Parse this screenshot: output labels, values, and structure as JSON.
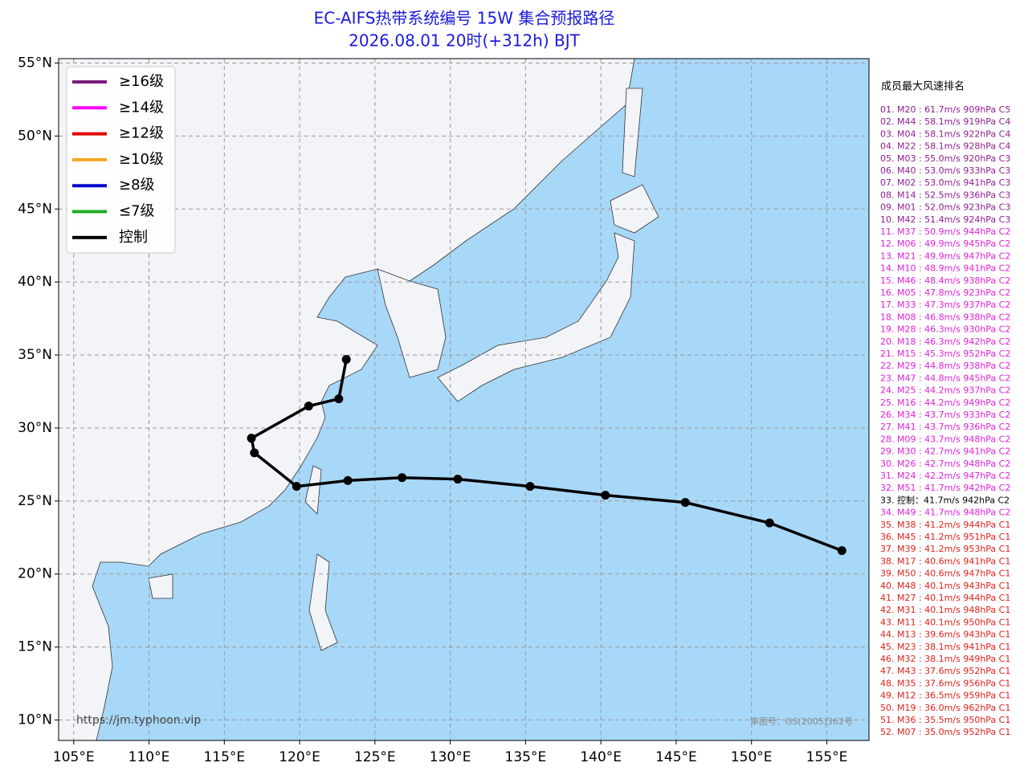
{
  "title": "EC-AIFS热带系统编号 15W 集合预报路径",
  "subtitle": "2026.08.01 20时(+312h) BJT",
  "map": {
    "xlim": [
      104,
      157.8
    ],
    "ylim": [
      8.6,
      55.3
    ],
    "xticks": [
      {
        "value": 105,
        "label": "105°E"
      },
      {
        "value": 110,
        "label": "110°E"
      },
      {
        "value": 115,
        "label": "115°E"
      },
      {
        "value": 120,
        "label": "120°E"
      },
      {
        "value": 125,
        "label": "125°E"
      },
      {
        "value": 130,
        "label": "130°E"
      },
      {
        "value": 135,
        "label": "135°E"
      },
      {
        "value": 140,
        "label": "140°E"
      },
      {
        "value": 145,
        "label": "145°E"
      },
      {
        "value": 150,
        "label": "150°E"
      },
      {
        "value": 155,
        "label": "155°E"
      }
    ],
    "yticks": [
      {
        "value": 10,
        "label": "10°N"
      },
      {
        "value": 15,
        "label": "15°N"
      },
      {
        "value": 20,
        "label": "20°N"
      },
      {
        "value": 25,
        "label": "25°N"
      },
      {
        "value": 30,
        "label": "30°N"
      },
      {
        "value": 35,
        "label": "35°N"
      },
      {
        "value": 40,
        "label": "40°N"
      },
      {
        "value": 45,
        "label": "45°N"
      },
      {
        "value": 50,
        "label": "50°N"
      },
      {
        "value": 55,
        "label": "55°N"
      }
    ],
    "grid": true,
    "legend": [
      {
        "name": "≥16级",
        "color": "#7b1a7b"
      },
      {
        "name": "≥14级",
        "color": "#ff00ff"
      },
      {
        "name": "≥12级",
        "color": "#e00000"
      },
      {
        "name": "≥10级",
        "color": "#f5a623"
      },
      {
        "name": "≥8级",
        "color": "#0000cc"
      },
      {
        "name": "≤7级",
        "color": "#22aa22"
      },
      {
        "name": "控制",
        "color": "#000000"
      }
    ],
    "control_track": {
      "lon": [
        156,
        151.2,
        145.6,
        140.3,
        135.3,
        130.5,
        126.8,
        123.2,
        119.8,
        117,
        116.8,
        120.6,
        122.6,
        123.1
      ],
      "lat": [
        21.6,
        23.5,
        24.9,
        25.4,
        26,
        26.5,
        26.6,
        26.4,
        26,
        28.3,
        29.3,
        31.5,
        32,
        34.7
      ]
    },
    "watermark": "https://jm.typhoon.vip",
    "approval": "审图号：GS(2005)362号"
  },
  "ranking_title": "成员最大风速排名",
  "ranking": [
    {
      "text": "01. M20 : 61.7m/s 909hPa C5",
      "color": "#8e1d8e"
    },
    {
      "text": "02. M44 : 58.1m/s 919hPa C4",
      "color": "#8e1d8e"
    },
    {
      "text": "03. M04 : 58.1m/s 922hPa C4",
      "color": "#8e1d8e"
    },
    {
      "text": "04. M22 : 58.1m/s 928hPa C4",
      "color": "#8e1d8e"
    },
    {
      "text": "05. M03 : 55.0m/s 920hPa C3",
      "color": "#8e1d8e"
    },
    {
      "text": "06. M40 : 53.0m/s 933hPa C3",
      "color": "#8e1d8e"
    },
    {
      "text": "07. M02 : 53.0m/s 941hPa C3",
      "color": "#8e1d8e"
    },
    {
      "text": "08. M14 : 52.5m/s 936hPa C3",
      "color": "#8e1d8e"
    },
    {
      "text": "09. M01 : 52.0m/s 923hPa C3",
      "color": "#8e1d8e"
    },
    {
      "text": "10. M42 : 51.4m/s 924hPa C3",
      "color": "#8e1d8e"
    },
    {
      "text": "11. M37 : 50.9m/s 944hPa C2",
      "color": "#e020d8"
    },
    {
      "text": "12. M06 : 49.9m/s 945hPa C2",
      "color": "#e020d8"
    },
    {
      "text": "13. M21 : 49.9m/s 947hPa C2",
      "color": "#e020d8"
    },
    {
      "text": "14. M10 : 48.9m/s 941hPa C2",
      "color": "#e020d8"
    },
    {
      "text": "15. M46 : 48.4m/s 938hPa C2",
      "color": "#e020d8"
    },
    {
      "text": "16. M05 : 47.8m/s 923hPa C2",
      "color": "#e020d8"
    },
    {
      "text": "17. M33 : 47.3m/s 937hPa C2",
      "color": "#e020d8"
    },
    {
      "text": "18. M08 : 46.8m/s 938hPa C2",
      "color": "#e020d8"
    },
    {
      "text": "19. M28 : 46.3m/s 930hPa C2",
      "color": "#e020d8"
    },
    {
      "text": "20. M18 : 46.3m/s 942hPa C2",
      "color": "#e020d8"
    },
    {
      "text": "21. M15 : 45.3m/s 952hPa C2",
      "color": "#e020d8"
    },
    {
      "text": "22. M29 : 44.8m/s 938hPa C2",
      "color": "#e020d8"
    },
    {
      "text": "23. M47 : 44.8m/s 945hPa C2",
      "color": "#e020d8"
    },
    {
      "text": "24. M25 : 44.2m/s 937hPa C2",
      "color": "#e020d8"
    },
    {
      "text": "25. M16 : 44.2m/s 949hPa C2",
      "color": "#e020d8"
    },
    {
      "text": "26. M34 : 43.7m/s 933hPa C2",
      "color": "#e020d8"
    },
    {
      "text": "27. M41 : 43.7m/s 936hPa C2",
      "color": "#e020d8"
    },
    {
      "text": "28. M09 : 43.7m/s 948hPa C2",
      "color": "#e020d8"
    },
    {
      "text": "29. M30 : 42.7m/s 941hPa C2",
      "color": "#e020d8"
    },
    {
      "text": "30. M26 : 42.7m/s 948hPa C2",
      "color": "#e020d8"
    },
    {
      "text": "31. M24 : 42.2m/s 947hPa C2",
      "color": "#e020d8"
    },
    {
      "text": "32. M51 : 41.7m/s 942hPa C2",
      "color": "#e020d8"
    },
    {
      "text": "33. 控制：41.7m/s 942hPa C2",
      "color": "#000000"
    },
    {
      "text": "34. M49 : 41.7m/s 948hPa C2",
      "color": "#e020d8"
    },
    {
      "text": "35. M38 : 41.2m/s 944hPa C1",
      "color": "#e0201a"
    },
    {
      "text": "36. M45 : 41.2m/s 951hPa C1",
      "color": "#e0201a"
    },
    {
      "text": "37. M39 : 41.2m/s 953hPa C1",
      "color": "#e0201a"
    },
    {
      "text": "38. M17 : 40.6m/s 941hPa C1",
      "color": "#e0201a"
    },
    {
      "text": "39. M50 : 40.6m/s 947hPa C1",
      "color": "#e0201a"
    },
    {
      "text": "40. M48 : 40.1m/s 943hPa C1",
      "color": "#e0201a"
    },
    {
      "text": "41. M27 : 40.1m/s 944hPa C1",
      "color": "#e0201a"
    },
    {
      "text": "42. M31 : 40.1m/s 948hPa C1",
      "color": "#e0201a"
    },
    {
      "text": "43. M11 : 40.1m/s 950hPa C1",
      "color": "#e0201a"
    },
    {
      "text": "44. M13 : 39.6m/s 943hPa C1",
      "color": "#e0201a"
    },
    {
      "text": "45. M23 : 38.1m/s 941hPa C1",
      "color": "#e0201a"
    },
    {
      "text": "46. M32 : 38.1m/s 949hPa C1",
      "color": "#e0201a"
    },
    {
      "text": "47. M43 : 37.6m/s 952hPa C1",
      "color": "#e0201a"
    },
    {
      "text": "48. M35 : 37.6m/s 956hPa C1",
      "color": "#e0201a"
    },
    {
      "text": "49. M12 : 36.5m/s 959hPa C1",
      "color": "#e0201a"
    },
    {
      "text": "50. M19 : 36.0m/s 962hPa C1",
      "color": "#e0201a"
    },
    {
      "text": "51. M36 : 35.5m/s 950hPa C1",
      "color": "#e0201a"
    },
    {
      "text": "52. M07 : 35.0m/s 952hPa C1",
      "color": "#e0201a"
    }
  ]
}
